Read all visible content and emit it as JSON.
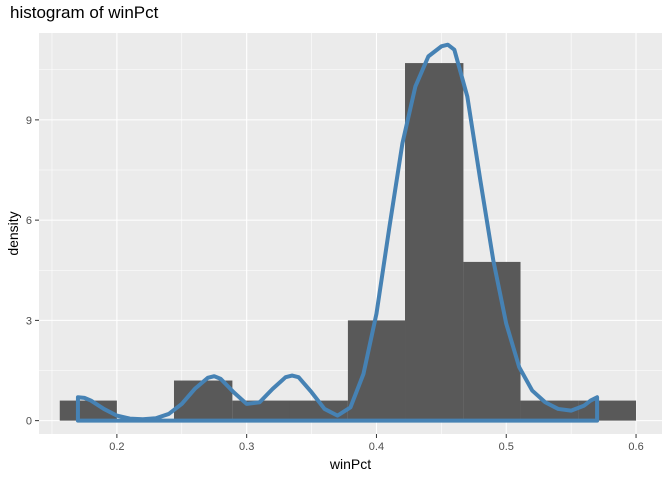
{
  "chart_data": {
    "type": "bar",
    "title": "histogram of winPct",
    "xlabel": "winPct",
    "ylabel": "density",
    "xlim": [
      0.14,
      0.62
    ],
    "ylim": [
      -0.4,
      11.6
    ],
    "x_ticks": [
      0.2,
      0.3,
      0.4,
      0.5,
      0.6
    ],
    "y_ticks": [
      0,
      3,
      6,
      9
    ],
    "grid": true,
    "background_color": "#EBEBEB",
    "bar_color": "#595959",
    "density_color": "#4682B4",
    "bins": [
      {
        "x_start": 0.156,
        "x_end": 0.2,
        "density": 0.6
      },
      {
        "x_start": 0.2,
        "x_end": 0.244,
        "density": 0.0
      },
      {
        "x_start": 0.244,
        "x_end": 0.289,
        "density": 1.2
      },
      {
        "x_start": 0.289,
        "x_end": 0.333,
        "density": 0.6
      },
      {
        "x_start": 0.333,
        "x_end": 0.378,
        "density": 0.6
      },
      {
        "x_start": 0.378,
        "x_end": 0.422,
        "density": 3.0
      },
      {
        "x_start": 0.422,
        "x_end": 0.467,
        "density": 10.7
      },
      {
        "x_start": 0.467,
        "x_end": 0.511,
        "density": 4.75
      },
      {
        "x_start": 0.511,
        "x_end": 0.556,
        "density": 0.6
      },
      {
        "x_start": 0.556,
        "x_end": 0.6,
        "density": 0.6
      }
    ],
    "density_curve": {
      "x": [
        0.17,
        0.175,
        0.18,
        0.19,
        0.2,
        0.21,
        0.22,
        0.23,
        0.24,
        0.25,
        0.26,
        0.27,
        0.275,
        0.28,
        0.29,
        0.3,
        0.31,
        0.32,
        0.33,
        0.335,
        0.34,
        0.35,
        0.36,
        0.37,
        0.38,
        0.39,
        0.4,
        0.41,
        0.42,
        0.43,
        0.44,
        0.45,
        0.455,
        0.46,
        0.47,
        0.48,
        0.49,
        0.5,
        0.51,
        0.52,
        0.53,
        0.54,
        0.55,
        0.56,
        0.565,
        0.57
      ],
      "y": [
        0.7,
        0.68,
        0.6,
        0.35,
        0.15,
        0.06,
        0.04,
        0.07,
        0.2,
        0.5,
        0.95,
        1.28,
        1.33,
        1.25,
        0.85,
        0.5,
        0.55,
        0.95,
        1.3,
        1.35,
        1.3,
        0.85,
        0.35,
        0.15,
        0.4,
        1.4,
        3.2,
        5.8,
        8.3,
        10.0,
        10.9,
        11.2,
        11.25,
        11.1,
        9.7,
        7.2,
        4.8,
        2.9,
        1.6,
        0.9,
        0.55,
        0.35,
        0.3,
        0.45,
        0.6,
        0.7
      ]
    }
  }
}
